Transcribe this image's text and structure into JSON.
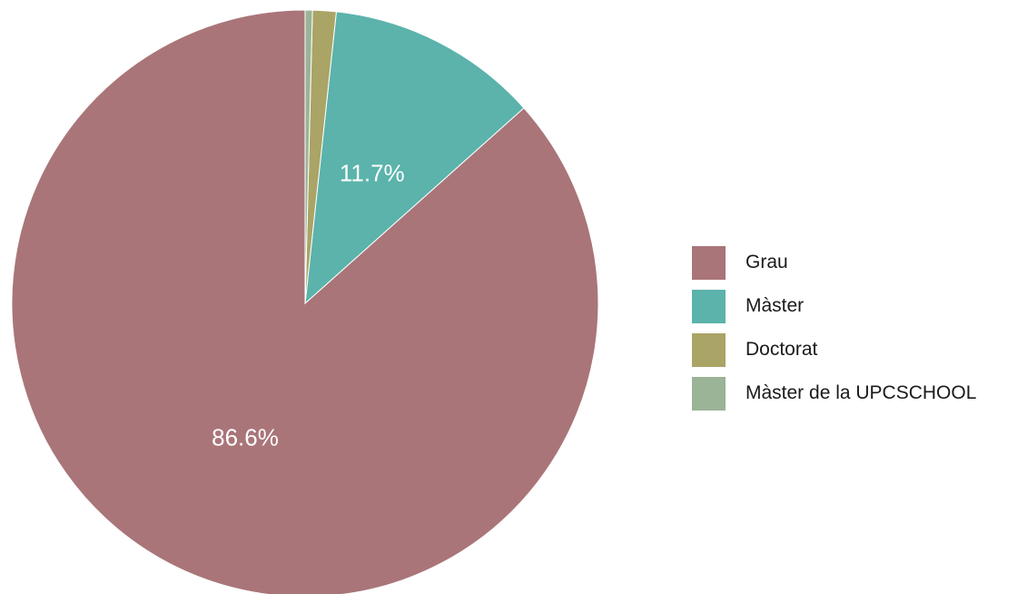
{
  "chart_data": {
    "type": "pie",
    "slices": [
      {
        "label": "Grau",
        "value": 86.6,
        "color": "#a97579",
        "display": "86.6%"
      },
      {
        "label": "Màster",
        "value": 11.7,
        "color": "#5bb3ab",
        "display": "11.7%"
      },
      {
        "label": "Doctorat",
        "value": 1.3,
        "color": "#aaa466",
        "display": ""
      },
      {
        "label": "Màster de la UPCSCHOOL",
        "value": 0.4,
        "color": "#9bb396",
        "display": ""
      }
    ],
    "legend_position": "right"
  }
}
